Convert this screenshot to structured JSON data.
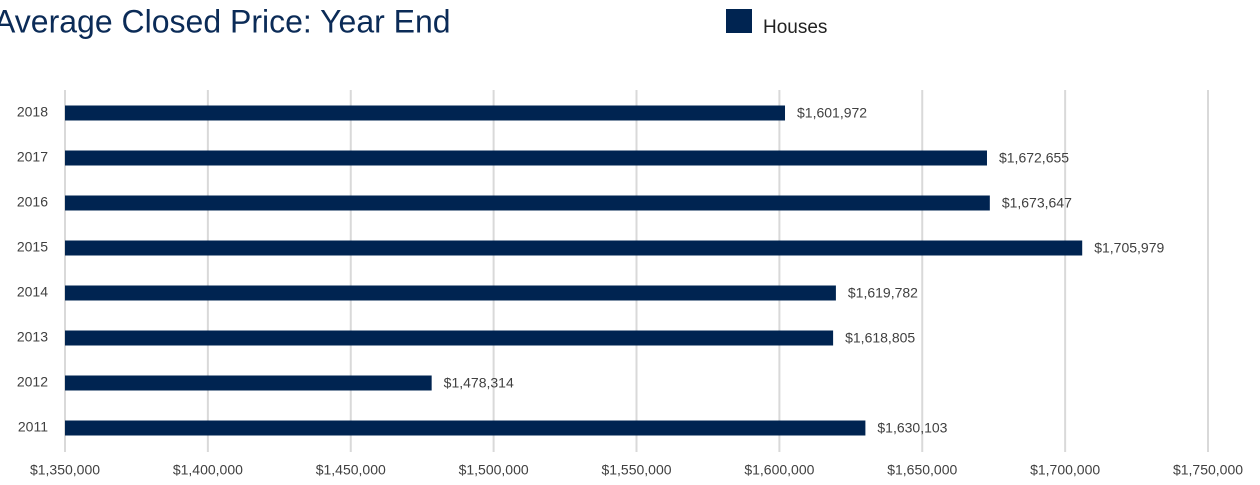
{
  "chart_data": {
    "type": "bar",
    "orientation": "horizontal",
    "title": "Average Closed Price: Year End",
    "categories": [
      "2018",
      "2017",
      "2016",
      "2015",
      "2014",
      "2013",
      "2012",
      "2011"
    ],
    "series": [
      {
        "name": "Houses",
        "color": "#002451",
        "values": [
          1601972,
          1672655,
          1673647,
          1705979,
          1619782,
          1618805,
          1478314,
          1630103
        ],
        "value_labels": [
          "$1,601,972",
          "$1,672,655",
          "$1,673,647",
          "$1,705,979",
          "$1,619,782",
          "$1,618,805",
          "$1,478,314",
          "$1,630,103"
        ]
      }
    ],
    "xlim": [
      1350000,
      1750000
    ],
    "xticks": [
      {
        "value": 1350000,
        "label": "$1,350,000"
      },
      {
        "value": 1400000,
        "label": "$1,400,000"
      },
      {
        "value": 1450000,
        "label": "$1,450,000"
      },
      {
        "value": 1500000,
        "label": "$1,500,000"
      },
      {
        "value": 1550000,
        "label": "$1,550,000"
      },
      {
        "value": 1600000,
        "label": "$1,600,000"
      },
      {
        "value": 1650000,
        "label": "$1,650,000"
      },
      {
        "value": 1700000,
        "label": "$1,700,000"
      },
      {
        "value": 1750000,
        "label": "$1,750,000"
      }
    ],
    "grid": true,
    "legend": "top"
  }
}
